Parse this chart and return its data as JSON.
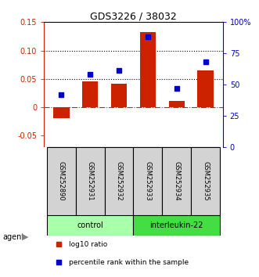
{
  "title": "GDS3226 / 38032",
  "samples": [
    "GSM252890",
    "GSM252931",
    "GSM252932",
    "GSM252933",
    "GSM252934",
    "GSM252935"
  ],
  "log10_ratio": [
    -0.02,
    0.046,
    0.041,
    0.132,
    0.011,
    0.065
  ],
  "percentile_rank": [
    42,
    58,
    61,
    88,
    47,
    68
  ],
  "group_colors": {
    "control": "#AAFFAA",
    "interleukin-22": "#44DD44"
  },
  "bar_color": "#CC2200",
  "dot_color": "#0000CC",
  "ylim_left": [
    -0.07,
    0.15
  ],
  "ylim_right": [
    0,
    100
  ],
  "yticks_left": [
    -0.05,
    0.0,
    0.05,
    0.1,
    0.15
  ],
  "yticks_right": [
    0,
    25,
    50,
    75,
    100
  ],
  "ytick_labels_left": [
    "-0.05",
    "0",
    "0.05",
    "0.10",
    "0.15"
  ],
  "ytick_labels_right": [
    "0",
    "25",
    "50",
    "75",
    "100%"
  ],
  "hlines": [
    0.05,
    0.1
  ],
  "legend_items": [
    {
      "label": "log10 ratio",
      "color": "#CC2200"
    },
    {
      "label": "percentile rank within the sample",
      "color": "#0000CC"
    }
  ]
}
